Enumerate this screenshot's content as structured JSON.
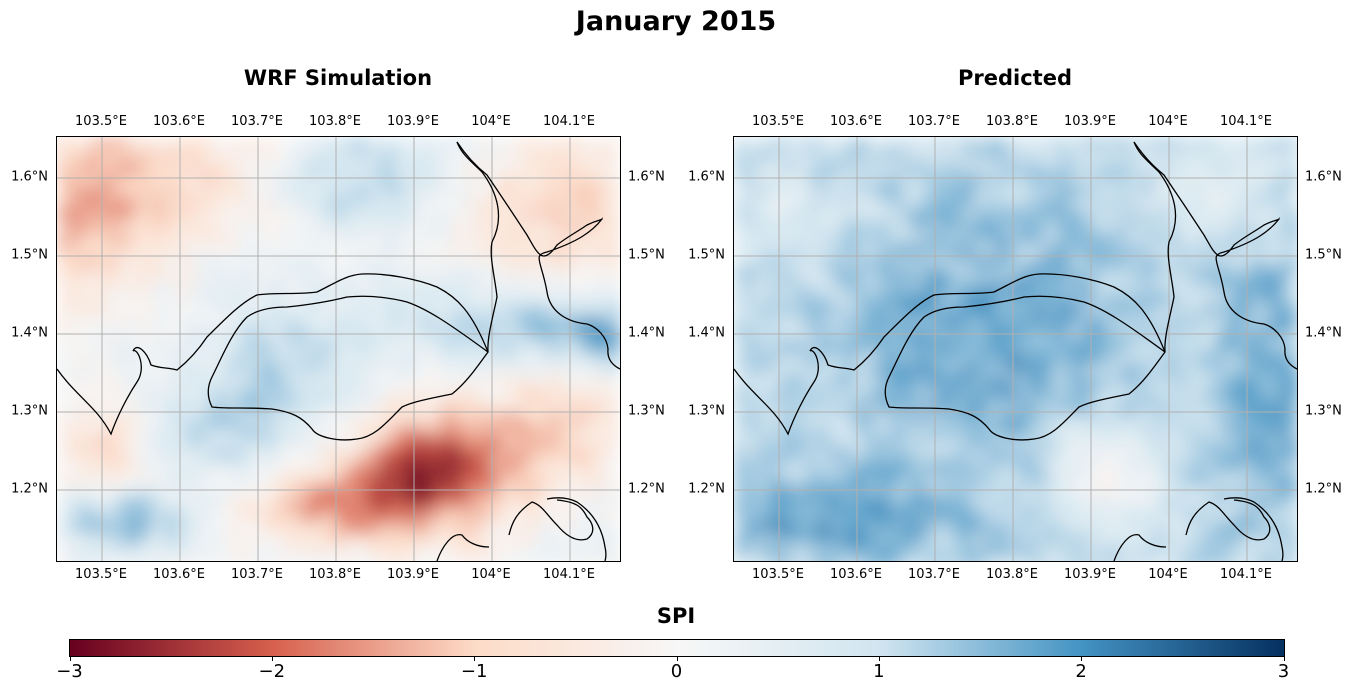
{
  "figure": {
    "title": "January 2015",
    "colorbar": {
      "label": "SPI",
      "min": -3,
      "max": 3,
      "ticks": [
        "−3",
        "−2",
        "−1",
        "0",
        "1",
        "2",
        "3"
      ],
      "colormap": "RdBu"
    }
  },
  "panels": [
    {
      "title": "WRF Simulation",
      "lon_ticks": [
        "103.5°E",
        "103.6°E",
        "103.7°E",
        "103.8°E",
        "103.9°E",
        "104°E",
        "104.1°E"
      ],
      "lat_ticks": [
        "1.6°N",
        "1.5°N",
        "1.4°N",
        "1.3°N",
        "1.2°N"
      ],
      "tendency": "mixed"
    },
    {
      "title": "Predicted",
      "lon_ticks": [
        "103.5°E",
        "103.6°E",
        "103.7°E",
        "103.8°E",
        "103.9°E",
        "104°E",
        "104.1°E"
      ],
      "lat_ticks": [
        "1.6°N",
        "1.5°N",
        "1.4°N",
        "1.3°N",
        "1.2°N"
      ],
      "tendency": "positive"
    }
  ],
  "colors": {
    "deep_red": "#67001f",
    "red": "#d6604d",
    "white": "#f7f7f7",
    "blue": "#4393c3",
    "deep_blue": "#053061",
    "grid": "#b0b0b0",
    "coast": "#000000"
  }
}
